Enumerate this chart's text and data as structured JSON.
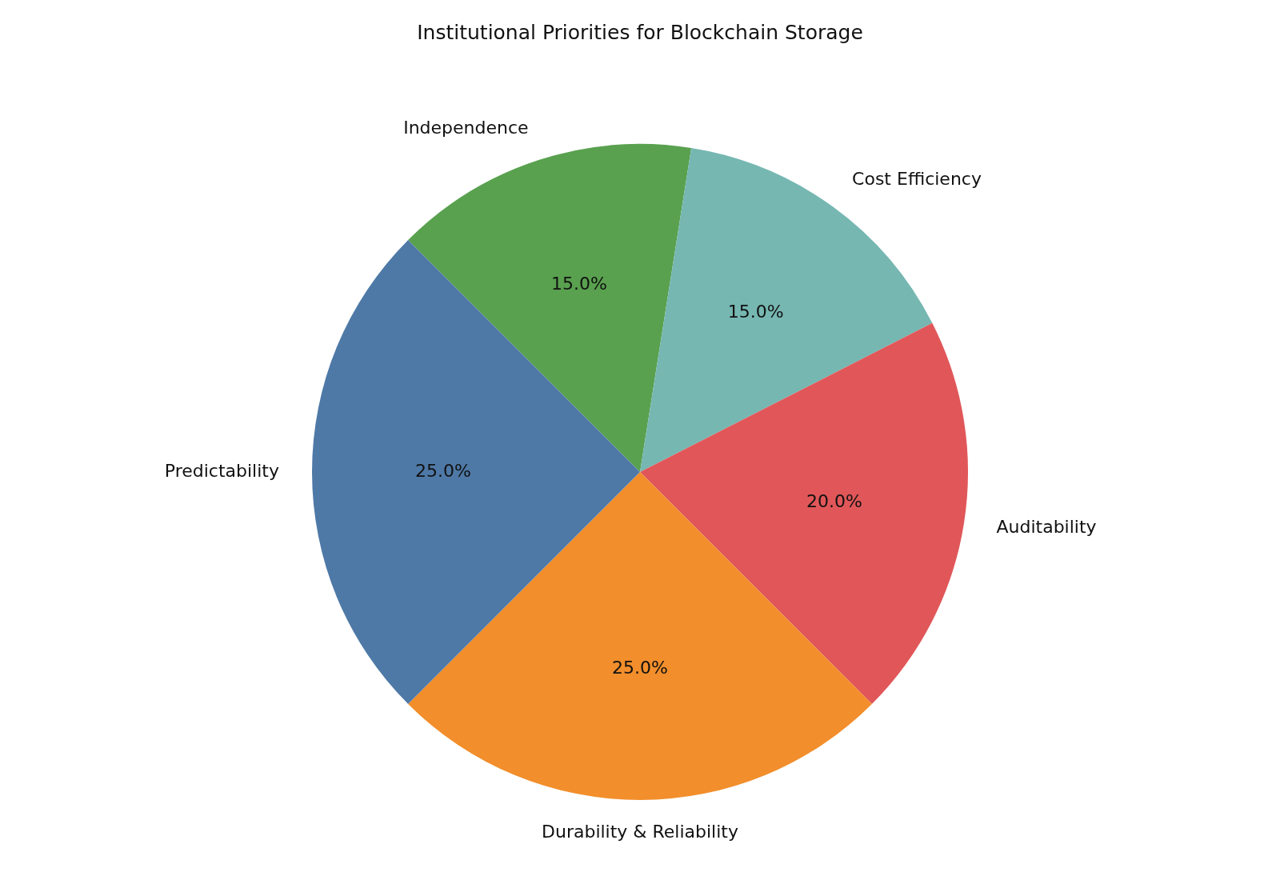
{
  "chart_data": {
    "type": "pie",
    "title": "Institutional Priorities for Blockchain Storage",
    "categories": [
      "Predictability",
      "Durability & Reliability",
      "Auditability",
      "Cost Efficiency",
      "Independence"
    ],
    "values": [
      25,
      25,
      20,
      15,
      15
    ],
    "value_labels": [
      "25.0%",
      "25.0%",
      "20.0%",
      "15.0%",
      "15.0%"
    ],
    "colors": [
      "#4e79a7",
      "#f28e2b",
      "#e15759",
      "#76b7b2",
      "#59a14f"
    ],
    "legend": false
  }
}
